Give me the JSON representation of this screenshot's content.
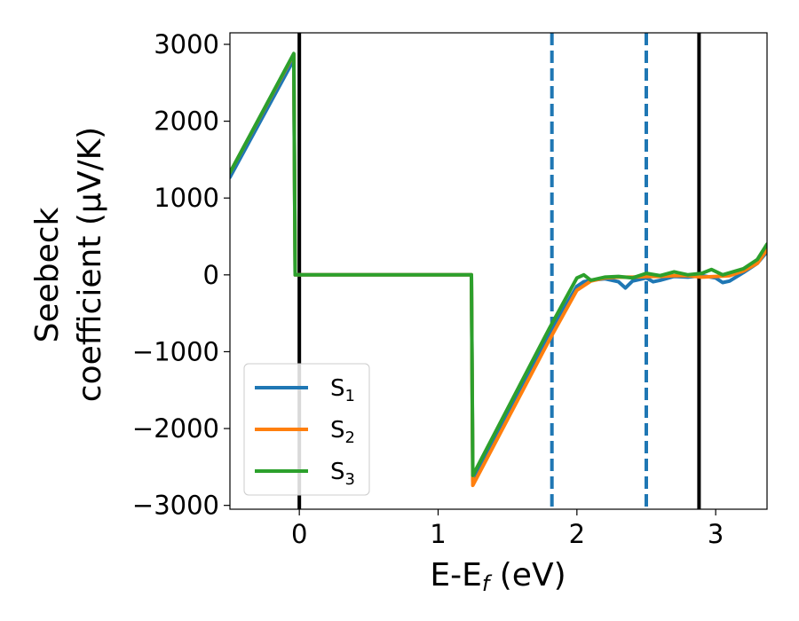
{
  "chart_data": {
    "type": "line",
    "xlabel": "E-E",
    "xlabel_sub": "f",
    "xlabel_unit": " (eV)",
    "ylabel_line1": "Seebeck",
    "ylabel_line2": "coefficient  (μV/K)",
    "xlim": [
      -0.5,
      3.37
    ],
    "ylim": [
      -3050,
      3150
    ],
    "xticks": [
      0,
      1,
      2,
      3
    ],
    "xtick_labels": [
      "0",
      "1",
      "2",
      "3"
    ],
    "yticks": [
      3000,
      2000,
      1000,
      0,
      -1000,
      -2000,
      -3000
    ],
    "ytick_labels": [
      "3000",
      "2000",
      "1000",
      "0",
      "−1000",
      "−2000",
      "−3000"
    ],
    "grid": false,
    "legend_position": "lower-left",
    "vlines": [
      {
        "x": 0.0,
        "style": "solid",
        "color": "#000000"
      },
      {
        "x": 1.82,
        "style": "dashed",
        "color": "#1f77b4"
      },
      {
        "x": 2.5,
        "style": "dashed",
        "color": "#1f77b4"
      },
      {
        "x": 2.88,
        "style": "solid",
        "color": "#000000"
      }
    ],
    "series": [
      {
        "name": "S",
        "sub": "1",
        "color": "#1f77b4",
        "x": [
          -0.5,
          -0.04,
          -0.03,
          1.24,
          1.25,
          1.8,
          2.0,
          2.05,
          2.1,
          2.2,
          2.3,
          2.35,
          2.4,
          2.5,
          2.55,
          2.6,
          2.7,
          2.8,
          2.9,
          3.0,
          3.05,
          3.1,
          3.2,
          3.3,
          3.37
        ],
        "y": [
          1270,
          2800,
          0,
          0,
          -2680,
          -770,
          -150,
          -90,
          -70,
          -50,
          -90,
          -170,
          -80,
          -40,
          -90,
          -70,
          -20,
          -30,
          -10,
          -40,
          -100,
          -80,
          30,
          150,
          300
        ]
      },
      {
        "name": "S",
        "sub": "2",
        "color": "#ff7f0e",
        "x": [
          -0.5,
          -0.04,
          -0.03,
          1.24,
          1.25,
          1.8,
          2.0,
          2.1,
          2.2,
          2.3,
          2.4,
          2.5,
          2.6,
          2.7,
          2.8,
          2.9,
          3.0,
          3.1,
          3.2,
          3.3,
          3.37
        ],
        "y": [
          1330,
          2870,
          0,
          0,
          -2740,
          -850,
          -200,
          -80,
          -40,
          -30,
          -30,
          -20,
          -20,
          -10,
          -10,
          -30,
          -20,
          -10,
          50,
          150,
          330
        ]
      },
      {
        "name": "S",
        "sub": "3",
        "color": "#2ca02c",
        "x": [
          -0.5,
          -0.04,
          -0.03,
          1.24,
          1.25,
          1.8,
          2.0,
          2.05,
          2.1,
          2.2,
          2.3,
          2.4,
          2.5,
          2.6,
          2.7,
          2.8,
          2.9,
          2.97,
          3.05,
          3.2,
          3.3,
          3.37
        ],
        "y": [
          1330,
          2880,
          0,
          0,
          -2610,
          -700,
          -40,
          0,
          -70,
          -30,
          -20,
          -40,
          20,
          -10,
          40,
          0,
          20,
          70,
          0,
          80,
          200,
          400
        ]
      }
    ]
  }
}
